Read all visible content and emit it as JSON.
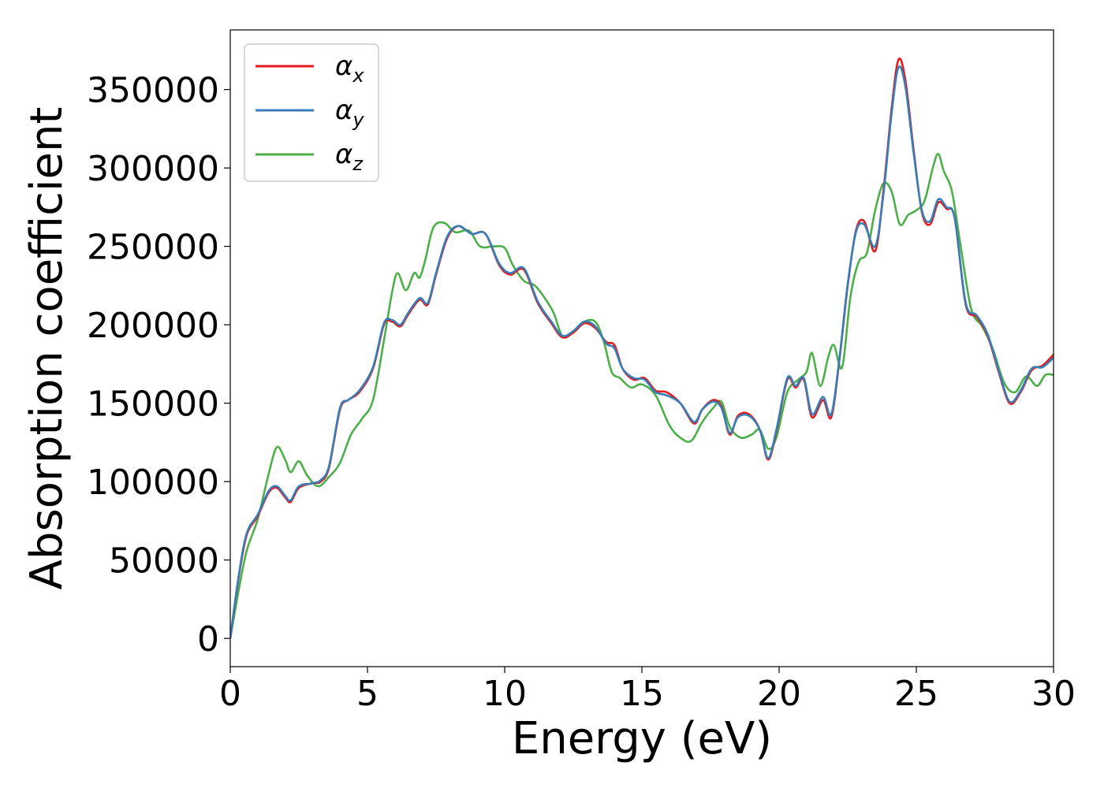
{
  "chart_data": {
    "type": "line",
    "title": "",
    "xlabel": "Energy (eV)",
    "ylabel": "Absorption coefficient",
    "xlim": [
      0,
      30
    ],
    "ylim": [
      -18000,
      388000
    ],
    "xticks": [
      0,
      5,
      10,
      15,
      20,
      25,
      30
    ],
    "xtick_labels": [
      "0",
      "5",
      "10",
      "15",
      "20",
      "25",
      "30"
    ],
    "yticks": [
      0,
      50000,
      100000,
      150000,
      200000,
      250000,
      300000,
      350000
    ],
    "ytick_labels": [
      "0",
      "50000",
      "100000",
      "150000",
      "200000",
      "250000",
      "300000",
      "350000"
    ],
    "grid": false,
    "legend_position": "top-left",
    "series": [
      {
        "name": "α_x",
        "legend_symbol": "α",
        "legend_subscript": "x",
        "color": "#e41a1c",
        "x": [
          0,
          0.3,
          0.6,
          1.0,
          1.4,
          1.7,
          2.0,
          2.2,
          2.5,
          3.0,
          3.3,
          3.6,
          4.0,
          4.3,
          4.7,
          5.2,
          5.6,
          5.9,
          6.2,
          6.5,
          6.9,
          7.2,
          7.5,
          7.9,
          8.3,
          8.8,
          9.3,
          9.8,
          10.2,
          10.7,
          11.2,
          11.7,
          12.1,
          12.5,
          12.9,
          13.3,
          13.7,
          14.0,
          14.3,
          14.7,
          15.1,
          15.5,
          15.9,
          16.4,
          16.9,
          17.2,
          17.6,
          17.9,
          18.2,
          18.5,
          18.9,
          19.3,
          19.6,
          19.9,
          20.3,
          20.6,
          20.9,
          21.2,
          21.6,
          21.9,
          22.2,
          22.5,
          22.8,
          23.1,
          23.5,
          23.8,
          24.1,
          24.35,
          24.6,
          24.9,
          25.2,
          25.5,
          25.8,
          26.1,
          26.4,
          26.8,
          27.2,
          27.6,
          28.0,
          28.4,
          28.8,
          29.2,
          29.6,
          30.0
        ],
        "values": [
          0,
          38000,
          66000,
          78000,
          93000,
          96000,
          90000,
          87000,
          96000,
          99000,
          100000,
          109000,
          146000,
          152000,
          157000,
          172000,
          200000,
          202000,
          199000,
          207000,
          216000,
          213000,
          232000,
          255000,
          263000,
          258000,
          258000,
          238000,
          232000,
          235000,
          214000,
          201000,
          192000,
          195000,
          201000,
          198000,
          189000,
          187000,
          172000,
          165000,
          166000,
          158000,
          157000,
          150000,
          137000,
          146000,
          152000,
          148000,
          130000,
          142000,
          143000,
          133000,
          114000,
          132000,
          165000,
          160000,
          165000,
          141000,
          152000,
          141000,
          178000,
          225000,
          260000,
          266000,
          247000,
          285000,
          338000,
          369000,
          356000,
          312000,
          272000,
          264000,
          278000,
          274000,
          268000,
          213000,
          205000,
          193000,
          170000,
          150000,
          157000,
          171000,
          174000,
          181000
        ]
      },
      {
        "name": "α_y",
        "legend_symbol": "α",
        "legend_subscript": "y",
        "color": "#377eb8",
        "x": [
          0,
          0.3,
          0.6,
          1.0,
          1.4,
          1.7,
          2.0,
          2.2,
          2.5,
          3.0,
          3.3,
          3.6,
          4.0,
          4.3,
          4.7,
          5.2,
          5.6,
          5.9,
          6.2,
          6.5,
          6.9,
          7.2,
          7.5,
          7.9,
          8.3,
          8.8,
          9.3,
          9.8,
          10.2,
          10.7,
          11.2,
          11.7,
          12.1,
          12.5,
          12.9,
          13.3,
          13.7,
          14.0,
          14.3,
          14.7,
          15.1,
          15.5,
          15.9,
          16.4,
          16.9,
          17.2,
          17.6,
          17.9,
          18.2,
          18.5,
          18.9,
          19.3,
          19.6,
          19.9,
          20.3,
          20.6,
          20.9,
          21.2,
          21.6,
          21.9,
          22.2,
          22.5,
          22.8,
          23.1,
          23.5,
          23.8,
          24.1,
          24.35,
          24.6,
          24.9,
          25.2,
          25.5,
          25.8,
          26.1,
          26.4,
          26.8,
          27.2,
          27.6,
          28.0,
          28.4,
          28.8,
          29.2,
          29.6,
          30.0
        ],
        "values": [
          0,
          39000,
          67000,
          79000,
          94000,
          97000,
          91000,
          88000,
          97000,
          99000,
          101000,
          110000,
          147000,
          152000,
          158000,
          173000,
          201000,
          203000,
          200000,
          208000,
          217000,
          214000,
          233000,
          256000,
          263000,
          258000,
          258000,
          239000,
          233000,
          236000,
          215000,
          202000,
          193000,
          196000,
          202000,
          199000,
          188000,
          185000,
          172000,
          166000,
          165000,
          157000,
          155000,
          150000,
          138000,
          146000,
          151000,
          147000,
          131000,
          141000,
          142000,
          133000,
          115000,
          133000,
          166000,
          161000,
          166000,
          143000,
          154000,
          143000,
          179000,
          226000,
          259000,
          264000,
          250000,
          283000,
          335000,
          364000,
          352000,
          310000,
          273000,
          266000,
          280000,
          275000,
          268000,
          214000,
          206000,
          194000,
          171000,
          151000,
          158000,
          172000,
          173000,
          179000
        ]
      },
      {
        "name": "α_z",
        "legend_symbol": "α",
        "legend_subscript": "z",
        "color": "#4daf4a",
        "x": [
          0,
          0.3,
          0.6,
          1.0,
          1.4,
          1.7,
          2.0,
          2.2,
          2.5,
          2.8,
          3.2,
          3.6,
          4.0,
          4.4,
          4.8,
          5.2,
          5.6,
          5.9,
          6.1,
          6.4,
          6.7,
          6.9,
          7.1,
          7.4,
          7.8,
          8.2,
          8.7,
          9.1,
          9.6,
          10.0,
          10.3,
          10.7,
          11.1,
          11.5,
          11.8,
          12.1,
          12.5,
          12.9,
          13.3,
          13.6,
          13.9,
          14.2,
          14.6,
          15.0,
          15.5,
          16.0,
          16.4,
          16.8,
          17.2,
          17.6,
          17.9,
          18.2,
          18.6,
          19.0,
          19.3,
          19.6,
          19.9,
          20.3,
          20.7,
          21.0,
          21.2,
          21.5,
          21.8,
          22.0,
          22.3,
          22.6,
          22.9,
          23.2,
          23.5,
          23.8,
          24.1,
          24.4,
          24.7,
          25.0,
          25.3,
          25.6,
          25.8,
          26.0,
          26.3,
          26.6,
          27.0,
          27.4,
          27.8,
          28.2,
          28.6,
          29.0,
          29.4,
          29.7,
          30.0
        ],
        "values": [
          0,
          30000,
          56000,
          76000,
          105000,
          122000,
          114000,
          106000,
          113000,
          104000,
          97000,
          103000,
          112000,
          130000,
          140000,
          152000,
          190000,
          221000,
          233000,
          222000,
          233000,
          230000,
          241000,
          262000,
          265000,
          259000,
          260000,
          250000,
          250000,
          249000,
          238000,
          228000,
          225000,
          216000,
          207000,
          193000,
          196000,
          202000,
          202000,
          190000,
          170000,
          166000,
          160000,
          162000,
          155000,
          136000,
          128000,
          126000,
          138000,
          147000,
          151000,
          135000,
          128000,
          130000,
          133000,
          121000,
          128000,
          157000,
          165000,
          170000,
          182000,
          161000,
          180000,
          187000,
          173000,
          218000,
          240000,
          246000,
          273000,
          290000,
          285000,
          264000,
          270000,
          273000,
          279000,
          300000,
          309000,
          298000,
          285000,
          252000,
          210000,
          199000,
          184000,
          163000,
          157000,
          167000,
          161000,
          168000,
          168000
        ]
      }
    ]
  }
}
